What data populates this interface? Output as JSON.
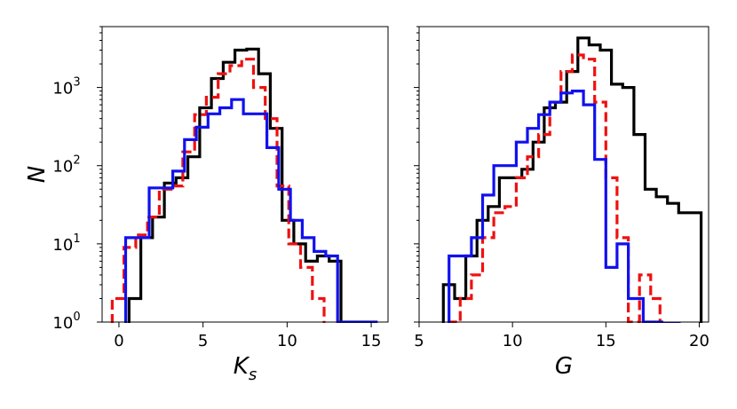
{
  "chart_data": [
    {
      "type": "histogram",
      "xlabel": "K",
      "xlabel_sub": "s",
      "ylabel": "N",
      "xlim": [
        -1.0,
        16.0
      ],
      "ylim": [
        1,
        6000
      ],
      "yscale": "log",
      "xticks": [
        0,
        5,
        10,
        15
      ],
      "yticks": [
        {
          "value": 1,
          "base": "10",
          "exp": "0"
        },
        {
          "value": 10,
          "base": "10",
          "exp": "1"
        },
        {
          "value": 100,
          "base": "10",
          "exp": "2"
        },
        {
          "value": 1000,
          "base": "10",
          "exp": "3"
        }
      ],
      "series": [
        {
          "color": "#000000",
          "style": "solid",
          "edges": [
            0.6,
            1.3,
            2.0,
            2.7,
            3.4,
            4.1,
            4.8,
            5.5,
            6.2,
            6.9,
            7.6,
            8.3,
            9.0,
            9.7,
            10.4,
            11.1,
            11.8,
            12.5,
            13.2
          ],
          "counts": [
            2,
            12,
            22,
            60,
            70,
            130,
            550,
            1300,
            2100,
            3000,
            3100,
            1500,
            300,
            20,
            10,
            6,
            7,
            6
          ]
        },
        {
          "color": "#ee1111",
          "style": "dashed",
          "edges": [
            -0.4,
            0.3,
            1.0,
            1.7,
            2.4,
            3.1,
            3.8,
            4.5,
            5.2,
            5.9,
            6.6,
            7.3,
            8.0,
            8.7,
            9.4,
            10.1,
            10.8,
            11.5,
            12.2
          ],
          "counts": [
            2,
            9,
            13,
            22,
            50,
            55,
            150,
            450,
            750,
            1500,
            1900,
            2300,
            1000,
            400,
            55,
            10,
            5,
            2
          ]
        },
        {
          "color": "#1111ee",
          "style": "solid",
          "edges": [
            0.4,
            1.1,
            1.8,
            2.5,
            3.2,
            3.9,
            4.6,
            5.3,
            6.0,
            6.7,
            7.4,
            8.1,
            8.8,
            9.5,
            10.2,
            10.9,
            11.6,
            12.3,
            13.0,
            15.3
          ],
          "counts": [
            12,
            12,
            52,
            52,
            85,
            215,
            310,
            460,
            550,
            700,
            460,
            460,
            170,
            50,
            20,
            12,
            8,
            7,
            1
          ]
        }
      ]
    },
    {
      "type": "histogram",
      "xlabel": "G",
      "xlabel_sub": "",
      "ylabel": "",
      "xlim": [
        5.0,
        20.5
      ],
      "ylim": [
        1,
        6000
      ],
      "yscale": "log",
      "xticks": [
        5,
        10,
        15,
        20
      ],
      "yticks": [],
      "series": [
        {
          "color": "#000000",
          "style": "solid",
          "edges": [
            6.3,
            6.9,
            7.5,
            8.1,
            8.7,
            9.3,
            9.9,
            10.5,
            11.1,
            11.7,
            12.3,
            12.9,
            13.5,
            14.1,
            14.7,
            15.3,
            15.9,
            16.5,
            17.1,
            17.7,
            18.3,
            18.9,
            19.5,
            20.1
          ],
          "counts": [
            3,
            2,
            7,
            20,
            30,
            70,
            70,
            90,
            200,
            550,
            650,
            1600,
            4300,
            3500,
            3000,
            1100,
            1000,
            250,
            50,
            40,
            33,
            25,
            25
          ]
        },
        {
          "color": "#ee1111",
          "style": "dashed",
          "edges": [
            6.6,
            7.2,
            7.8,
            8.4,
            9.0,
            9.6,
            10.2,
            10.8,
            11.4,
            12.0,
            12.6,
            13.2,
            13.8,
            14.4,
            15.0,
            15.6,
            16.2,
            16.8,
            17.4,
            17.9
          ],
          "counts": [
            1,
            2,
            4,
            12,
            25,
            30,
            70,
            130,
            250,
            650,
            1600,
            2600,
            2300,
            650,
            70,
            12,
            1,
            4,
            2
          ]
        },
        {
          "color": "#1111ee",
          "style": "solid",
          "edges": [
            6.6,
            7.2,
            7.8,
            8.4,
            9.0,
            9.6,
            10.2,
            10.8,
            11.4,
            12.0,
            12.6,
            13.2,
            13.8,
            14.4,
            15.0,
            15.6,
            16.2,
            17.0,
            18.0,
            19.0
          ],
          "counts": [
            7,
            7,
            12,
            42,
            100,
            100,
            200,
            300,
            450,
            650,
            850,
            900,
            600,
            120,
            5,
            10,
            2,
            1,
            0
          ]
        }
      ]
    }
  ]
}
